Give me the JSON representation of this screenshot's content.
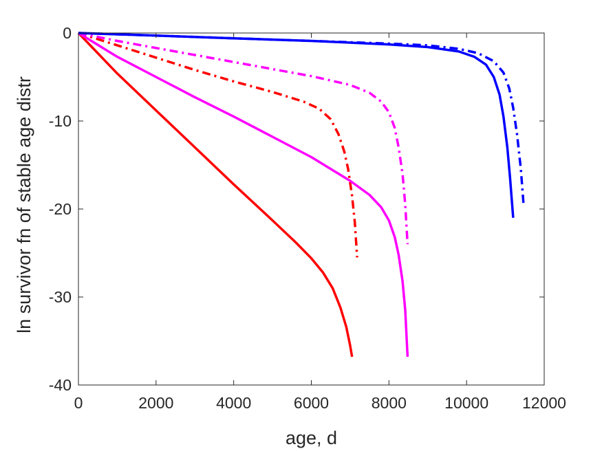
{
  "chart_data": {
    "type": "line",
    "title": "",
    "xlabel": "age, d",
    "ylabel": "ln survivor fn of stable age distr",
    "xlim": [
      0,
      12000
    ],
    "ylim": [
      -40,
      0
    ],
    "xticks": [
      0,
      2000,
      4000,
      6000,
      8000,
      10000,
      12000
    ],
    "yticks": [
      0,
      -10,
      -20,
      -30,
      -40
    ],
    "xtick_labels": [
      "0",
      "2000",
      "4000",
      "6000",
      "8000",
      "10000",
      "12000"
    ],
    "ytick_labels": [
      "0",
      "-10",
      "-20",
      "-30",
      "-40"
    ],
    "grid": false,
    "legend": "none",
    "series": [
      {
        "color": "#ff0000",
        "style": "solid",
        "x": [
          0,
          1000,
          2000,
          3000,
          4000,
          5000,
          5600,
          6000,
          6300,
          6550,
          6750,
          6900,
          7000,
          7050
        ],
        "y": [
          0,
          -4.6,
          -8.8,
          -13.0,
          -17.2,
          -21.3,
          -23.8,
          -25.6,
          -27.2,
          -29.0,
          -31.2,
          -33.4,
          -35.5,
          -36.8
        ]
      },
      {
        "color": "#ff0000",
        "style": "dashdot",
        "x": [
          0,
          500,
          1000,
          2000,
          3000,
          4000,
          5000,
          5800,
          6200,
          6500,
          6700,
          6850,
          6950,
          7050,
          7120,
          7180
        ],
        "y": [
          0,
          -0.7,
          -1.4,
          -2.8,
          -4.2,
          -5.5,
          -6.7,
          -7.8,
          -8.6,
          -9.8,
          -11.5,
          -13.5,
          -15.5,
          -18.5,
          -21.5,
          -25.5
        ]
      },
      {
        "color": "#ff00ff",
        "style": "solid",
        "x": [
          0,
          1000,
          2000,
          3000,
          4000,
          5000,
          6000,
          7000,
          7500,
          7800,
          8000,
          8150,
          8250,
          8350,
          8420,
          8480
        ],
        "y": [
          0,
          -2.7,
          -5.0,
          -7.3,
          -9.5,
          -11.8,
          -14.1,
          -16.8,
          -18.4,
          -19.8,
          -21.3,
          -23.2,
          -25.2,
          -28.2,
          -31.5,
          -36.8
        ]
      },
      {
        "color": "#ff00ff",
        "style": "dashdot",
        "x": [
          0,
          1000,
          2000,
          3000,
          4000,
          5000,
          6000,
          7000,
          7500,
          7800,
          8000,
          8150,
          8250,
          8350,
          8420,
          8480
        ],
        "y": [
          0,
          -0.9,
          -1.7,
          -2.5,
          -3.3,
          -4.1,
          -4.9,
          -5.9,
          -6.8,
          -7.8,
          -9.0,
          -10.8,
          -13.0,
          -16.0,
          -19.5,
          -24.0
        ]
      },
      {
        "color": "#0000ff",
        "style": "solid",
        "x": [
          0,
          2000,
          4000,
          6000,
          8000,
          9000,
          9800,
          10200,
          10500,
          10700,
          10850,
          10950,
          11050,
          11120,
          11200
        ],
        "y": [
          0,
          -0.3,
          -0.6,
          -0.9,
          -1.3,
          -1.6,
          -2.1,
          -2.7,
          -3.6,
          -5.0,
          -7.0,
          -9.5,
          -13.0,
          -16.5,
          -21.0
        ]
      },
      {
        "color": "#0000ff",
        "style": "dashdot",
        "x": [
          0,
          2000,
          4000,
          6000,
          8000,
          9000,
          9800,
          10300,
          10700,
          10950,
          11100,
          11200,
          11300,
          11400,
          11470
        ],
        "y": [
          0,
          -0.3,
          -0.6,
          -0.9,
          -1.2,
          -1.4,
          -1.8,
          -2.3,
          -3.2,
          -4.5,
          -6.3,
          -8.5,
          -11.5,
          -15.5,
          -19.6
        ]
      }
    ]
  }
}
